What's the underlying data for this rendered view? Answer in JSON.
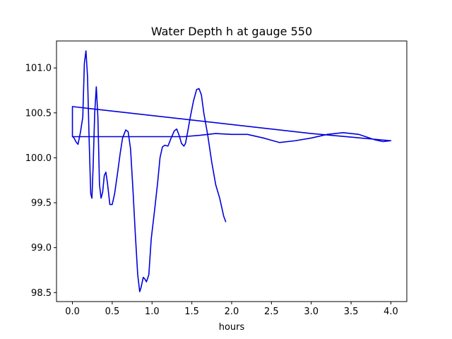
{
  "chart_data": {
    "type": "line",
    "title": "Water Depth h at gauge 550",
    "xlabel": "hours",
    "ylabel": "",
    "xlim": [
      -0.2,
      4.2
    ],
    "ylim": [
      98.4,
      101.3
    ],
    "xticks": [
      0.0,
      0.5,
      1.0,
      1.5,
      2.0,
      2.5,
      3.0,
      3.5,
      4.0
    ],
    "xtick_labels": [
      "0.0",
      "0.5",
      "1.0",
      "1.5",
      "2.0",
      "2.5",
      "3.0",
      "3.5",
      "4.0"
    ],
    "yticks": [
      98.5,
      99.0,
      99.5,
      100.0,
      100.5,
      101.0
    ],
    "ytick_labels": [
      "98.5",
      "99.0",
      "99.5",
      "100.0",
      "100.5",
      "101.0"
    ],
    "grid": false,
    "legend": "none",
    "colors": {
      "line": "#0000dd",
      "axes": "#000000",
      "background": "#ffffff"
    },
    "series": [
      {
        "points": [
          [
            0.0,
            100.24
          ],
          [
            0.0,
            100.57
          ],
          [
            3.0,
            100.27
          ],
          [
            4.0,
            100.19
          ],
          [
            3.9,
            100.18
          ],
          [
            3.8,
            100.2
          ],
          [
            3.6,
            100.26
          ],
          [
            3.4,
            100.28
          ],
          [
            3.2,
            100.26
          ],
          [
            3.0,
            100.22
          ],
          [
            2.8,
            100.19
          ],
          [
            2.6,
            100.17
          ],
          [
            2.4,
            100.22
          ],
          [
            2.2,
            100.26
          ],
          [
            2.0,
            100.26
          ],
          [
            1.8,
            100.27
          ],
          [
            1.6,
            100.25
          ],
          [
            1.4,
            100.235
          ],
          [
            0.0,
            100.235
          ],
          [
            0.0,
            100.24
          ],
          [
            0.02,
            100.22
          ],
          [
            0.05,
            100.17
          ],
          [
            0.07,
            100.15
          ],
          [
            0.1,
            100.28
          ],
          [
            0.13,
            100.45
          ],
          [
            0.15,
            101.05
          ],
          [
            0.17,
            101.19
          ],
          [
            0.19,
            100.9
          ],
          [
            0.21,
            100.2
          ],
          [
            0.23,
            99.6
          ],
          [
            0.245,
            99.55
          ],
          [
            0.26,
            99.9
          ],
          [
            0.28,
            100.5
          ],
          [
            0.3,
            100.79
          ],
          [
            0.32,
            100.45
          ],
          [
            0.34,
            99.7
          ],
          [
            0.36,
            99.55
          ],
          [
            0.38,
            99.62
          ],
          [
            0.4,
            99.8
          ],
          [
            0.42,
            99.84
          ],
          [
            0.44,
            99.72
          ],
          [
            0.47,
            99.48
          ],
          [
            0.5,
            99.48
          ],
          [
            0.53,
            99.6
          ],
          [
            0.57,
            99.85
          ],
          [
            0.6,
            100.05
          ],
          [
            0.63,
            100.22
          ],
          [
            0.67,
            100.31
          ],
          [
            0.7,
            100.29
          ],
          [
            0.73,
            100.1
          ],
          [
            0.76,
            99.65
          ],
          [
            0.79,
            99.15
          ],
          [
            0.82,
            98.7
          ],
          [
            0.845,
            98.51
          ],
          [
            0.86,
            98.55
          ],
          [
            0.89,
            98.67
          ],
          [
            0.91,
            98.65
          ],
          [
            0.93,
            98.62
          ],
          [
            0.96,
            98.7
          ],
          [
            0.99,
            99.1
          ],
          [
            1.03,
            99.4
          ],
          [
            1.07,
            99.72
          ],
          [
            1.1,
            100.0
          ],
          [
            1.13,
            100.12
          ],
          [
            1.16,
            100.14
          ],
          [
            1.2,
            100.13
          ],
          [
            1.24,
            100.22
          ],
          [
            1.28,
            100.3
          ],
          [
            1.31,
            100.32
          ],
          [
            1.34,
            100.25
          ],
          [
            1.37,
            100.16
          ],
          [
            1.4,
            100.13
          ],
          [
            1.42,
            100.16
          ],
          [
            1.45,
            100.3
          ],
          [
            1.48,
            100.45
          ],
          [
            1.52,
            100.63
          ],
          [
            1.56,
            100.76
          ],
          [
            1.59,
            100.77
          ],
          [
            1.62,
            100.7
          ],
          [
            1.65,
            100.5
          ],
          [
            1.7,
            100.25
          ],
          [
            1.75,
            99.95
          ],
          [
            1.8,
            99.7
          ],
          [
            1.85,
            99.55
          ],
          [
            1.9,
            99.35
          ],
          [
            1.925,
            99.29
          ]
        ]
      }
    ]
  }
}
